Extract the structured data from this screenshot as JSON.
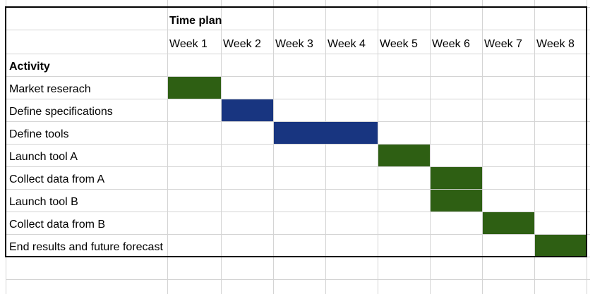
{
  "chart_data": {
    "type": "table",
    "header": {
      "group_label": "Time plan",
      "activity_label": "Activity"
    },
    "weeks": [
      "Week 1",
      "Week 2",
      "Week 3",
      "Week 4",
      "Week 5",
      "Week 6",
      "Week 7",
      "Week 8"
    ],
    "tasks": [
      {
        "name": "Market reserach",
        "weeks": [
          1
        ],
        "color": "#2e5f13"
      },
      {
        "name": "Define specifications",
        "weeks": [
          2
        ],
        "color": "#183580"
      },
      {
        "name": "Define tools",
        "weeks": [
          3,
          4
        ],
        "color": "#183580"
      },
      {
        "name": "Launch tool A",
        "weeks": [
          5
        ],
        "color": "#2e5f13"
      },
      {
        "name": "Collect data from A",
        "weeks": [
          6
        ],
        "color": "#2e5f13"
      },
      {
        "name": "Launch tool B",
        "weeks": [
          6
        ],
        "color": "#2e5f13"
      },
      {
        "name": "Collect data from B",
        "weeks": [
          7
        ],
        "color": "#2e5f13"
      },
      {
        "name": "End results and future forecast",
        "weeks": [
          8
        ],
        "color": "#2e5f13"
      }
    ],
    "colors": {
      "green": "#2e5f13",
      "blue": "#183580",
      "gridline": "#d4d4d4",
      "border": "#000000"
    }
  }
}
